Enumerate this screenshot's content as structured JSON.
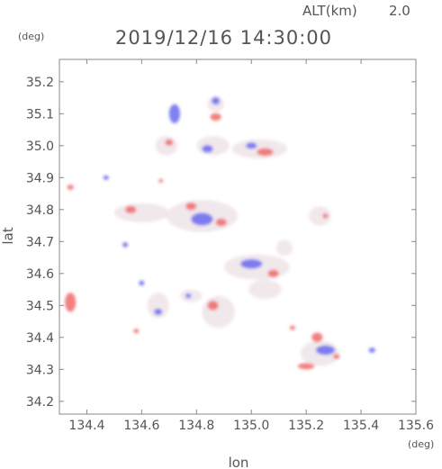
{
  "header": {
    "alt_label": "ALT(km)",
    "alt_value": "2.0",
    "timestamp": "2019/12/16 14:30:00"
  },
  "chart_data": {
    "type": "heatmap",
    "xlabel": "lon",
    "ylabel": "lat",
    "x_unit": "(deg)",
    "y_unit": "(deg)",
    "xlim": [
      134.3,
      135.6
    ],
    "ylim": [
      34.16,
      35.27
    ],
    "xticks": [
      134.4,
      134.6,
      134.8,
      135.0,
      135.2,
      135.4,
      135.6
    ],
    "xtick_labels": [
      "134.4",
      "134.6",
      "134.8",
      "135.0",
      "135.2",
      "135.4",
      "135.6"
    ],
    "yticks": [
      34.2,
      34.3,
      34.4,
      34.5,
      34.6,
      34.7,
      34.8,
      34.9,
      35.0,
      35.1,
      35.2
    ],
    "ytick_labels": [
      "34.2",
      "34.3",
      "34.4",
      "34.5",
      "34.6",
      "34.7",
      "34.8",
      "34.9",
      "35.0",
      "35.1",
      "35.2"
    ],
    "grid": false,
    "colors": {
      "positive": "#f06a6a",
      "negative": "#6a6af0",
      "neutral": "#efe6ea"
    },
    "regions": [
      {
        "lon": 135.25,
        "lat": 34.35,
        "rx": 0.07,
        "ry": 0.04,
        "sign": 0
      },
      {
        "lon": 135.27,
        "lat": 34.36,
        "rx": 0.035,
        "ry": 0.015,
        "sign": -1
      },
      {
        "lon": 135.24,
        "lat": 34.4,
        "rx": 0.02,
        "ry": 0.015,
        "sign": 1
      },
      {
        "lon": 135.2,
        "lat": 34.31,
        "rx": 0.03,
        "ry": 0.01,
        "sign": 1
      },
      {
        "lon": 135.44,
        "lat": 34.36,
        "rx": 0.012,
        "ry": 0.008,
        "sign": -1
      },
      {
        "lon": 134.34,
        "lat": 34.51,
        "rx": 0.02,
        "ry": 0.03,
        "sign": 1
      },
      {
        "lon": 134.34,
        "lat": 34.87,
        "rx": 0.012,
        "ry": 0.008,
        "sign": 1
      },
      {
        "lon": 134.47,
        "lat": 34.9,
        "rx": 0.01,
        "ry": 0.007,
        "sign": -1
      },
      {
        "lon": 134.67,
        "lat": 34.89,
        "rx": 0.008,
        "ry": 0.006,
        "sign": 1
      },
      {
        "lon": 134.58,
        "lat": 34.42,
        "rx": 0.01,
        "ry": 0.007,
        "sign": 1
      },
      {
        "lon": 134.87,
        "lat": 35.13,
        "rx": 0.03,
        "ry": 0.025,
        "sign": 0
      },
      {
        "lon": 134.87,
        "lat": 35.14,
        "rx": 0.015,
        "ry": 0.012,
        "sign": -1
      },
      {
        "lon": 134.87,
        "lat": 35.09,
        "rx": 0.02,
        "ry": 0.012,
        "sign": 1
      },
      {
        "lon": 134.72,
        "lat": 35.1,
        "rx": 0.02,
        "ry": 0.03,
        "sign": -1
      },
      {
        "lon": 134.69,
        "lat": 35.0,
        "rx": 0.04,
        "ry": 0.03,
        "sign": 0
      },
      {
        "lon": 134.7,
        "lat": 35.01,
        "rx": 0.015,
        "ry": 0.01,
        "sign": 1
      },
      {
        "lon": 134.86,
        "lat": 35.0,
        "rx": 0.06,
        "ry": 0.03,
        "sign": 0
      },
      {
        "lon": 134.84,
        "lat": 34.99,
        "rx": 0.02,
        "ry": 0.012,
        "sign": -1
      },
      {
        "lon": 135.03,
        "lat": 34.99,
        "rx": 0.1,
        "ry": 0.03,
        "sign": 0
      },
      {
        "lon": 135.05,
        "lat": 34.98,
        "rx": 0.03,
        "ry": 0.012,
        "sign": 1
      },
      {
        "lon": 135.0,
        "lat": 35.0,
        "rx": 0.02,
        "ry": 0.01,
        "sign": -1
      },
      {
        "lon": 134.6,
        "lat": 34.79,
        "rx": 0.1,
        "ry": 0.03,
        "sign": 0
      },
      {
        "lon": 134.56,
        "lat": 34.8,
        "rx": 0.02,
        "ry": 0.012,
        "sign": 1
      },
      {
        "lon": 134.82,
        "lat": 34.78,
        "rx": 0.13,
        "ry": 0.05,
        "sign": 0
      },
      {
        "lon": 134.82,
        "lat": 34.77,
        "rx": 0.04,
        "ry": 0.02,
        "sign": -1
      },
      {
        "lon": 134.78,
        "lat": 34.81,
        "rx": 0.02,
        "ry": 0.012,
        "sign": 1
      },
      {
        "lon": 134.89,
        "lat": 34.76,
        "rx": 0.02,
        "ry": 0.012,
        "sign": 1
      },
      {
        "lon": 135.25,
        "lat": 34.78,
        "rx": 0.04,
        "ry": 0.03,
        "sign": 0
      },
      {
        "lon": 135.27,
        "lat": 34.78,
        "rx": 0.01,
        "ry": 0.008,
        "sign": 1
      },
      {
        "lon": 135.02,
        "lat": 34.62,
        "rx": 0.12,
        "ry": 0.04,
        "sign": 0
      },
      {
        "lon": 135.0,
        "lat": 34.63,
        "rx": 0.04,
        "ry": 0.015,
        "sign": -1
      },
      {
        "lon": 135.08,
        "lat": 34.6,
        "rx": 0.02,
        "ry": 0.012,
        "sign": 1
      },
      {
        "lon": 135.05,
        "lat": 34.55,
        "rx": 0.06,
        "ry": 0.03,
        "sign": 0
      },
      {
        "lon": 134.88,
        "lat": 34.48,
        "rx": 0.06,
        "ry": 0.05,
        "sign": 0
      },
      {
        "lon": 134.86,
        "lat": 34.5,
        "rx": 0.02,
        "ry": 0.015,
        "sign": 1
      },
      {
        "lon": 134.66,
        "lat": 34.5,
        "rx": 0.04,
        "ry": 0.04,
        "sign": 0
      },
      {
        "lon": 134.66,
        "lat": 34.48,
        "rx": 0.015,
        "ry": 0.01,
        "sign": -1
      },
      {
        "lon": 134.78,
        "lat": 34.53,
        "rx": 0.04,
        "ry": 0.02,
        "sign": 0
      },
      {
        "lon": 134.77,
        "lat": 34.53,
        "rx": 0.01,
        "ry": 0.008,
        "sign": -1
      },
      {
        "lon": 135.12,
        "lat": 34.68,
        "rx": 0.03,
        "ry": 0.025,
        "sign": 0
      },
      {
        "lon": 134.54,
        "lat": 34.69,
        "rx": 0.01,
        "ry": 0.008,
        "sign": -1
      },
      {
        "lon": 134.6,
        "lat": 34.57,
        "rx": 0.01,
        "ry": 0.008,
        "sign": -1
      },
      {
        "lon": 135.15,
        "lat": 34.43,
        "rx": 0.01,
        "ry": 0.007,
        "sign": 1
      },
      {
        "lon": 135.31,
        "lat": 34.34,
        "rx": 0.012,
        "ry": 0.008,
        "sign": 1
      }
    ]
  }
}
